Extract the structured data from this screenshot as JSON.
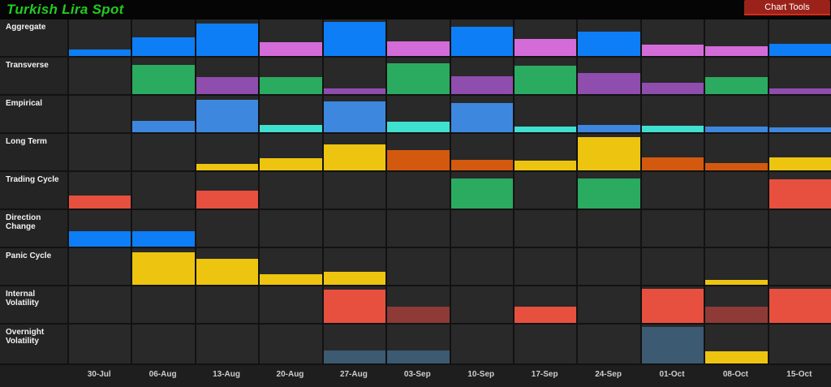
{
  "header": {
    "title": "Turkish Lira Spot",
    "chart_tools_label": "Chart Tools"
  },
  "ui_colors": {
    "title_green": "#21cb21",
    "button_bg": "#9b221a",
    "button_underline": "#d52c1a"
  },
  "palette": {
    "blue": "#0d7ef5",
    "lightblue": "#3e87de",
    "cyan": "#40e0d0",
    "pink": "#d36cd8",
    "green": "#2aab60",
    "purple": "#8f4dae",
    "yellow": "#edc511",
    "orange": "#d3590e",
    "red": "#e7503f",
    "maroon": "#8e3a37",
    "steel": "#3c5a72"
  },
  "chart_data": {
    "type": "bar",
    "title": "Turkish Lira Spot",
    "xlabel": "week",
    "ylabel": "relative signal strength (0-1 of row height)",
    "legend_position": "none",
    "grid": true,
    "layout_hint": "grid of weekly mini-bars, one row per indicator, bars bottom-aligned in each row cell; color encodes signal type",
    "categories": [
      "30-Jul",
      "06-Aug",
      "13-Aug",
      "20-Aug",
      "27-Aug",
      "03-Sep",
      "10-Sep",
      "17-Sep",
      "24-Sep",
      "01-Oct",
      "08-Oct",
      "15-Oct"
    ],
    "series": [
      {
        "name": "Aggregate",
        "values": [
          {
            "c": "blue",
            "v": 0.17
          },
          {
            "c": "blue",
            "v": 0.51
          },
          {
            "c": "blue",
            "v": 0.88
          },
          {
            "c": "pink",
            "v": 0.38
          },
          {
            "c": "blue",
            "v": 0.94
          },
          {
            "c": "pink",
            "v": 0.4
          },
          {
            "c": "blue",
            "v": 0.79
          },
          {
            "c": "pink",
            "v": 0.47
          },
          {
            "c": "blue",
            "v": 0.66
          },
          {
            "c": "pink",
            "v": 0.32
          },
          {
            "c": "pink",
            "v": 0.26
          },
          {
            "c": "blue",
            "v": 0.34
          }
        ]
      },
      {
        "name": "Transverse",
        "values": [
          null,
          {
            "c": "green",
            "v": 0.79
          },
          {
            "c": "purple",
            "v": 0.47
          },
          {
            "c": "green",
            "v": 0.47
          },
          {
            "c": "purple",
            "v": 0.15
          },
          {
            "c": "green",
            "v": 0.85
          },
          {
            "c": "purple",
            "v": 0.49
          },
          {
            "c": "green",
            "v": 0.77
          },
          {
            "c": "purple",
            "v": 0.57
          },
          {
            "c": "purple",
            "v": 0.32
          },
          {
            "c": "green",
            "v": 0.47
          },
          {
            "c": "purple",
            "v": 0.15
          }
        ]
      },
      {
        "name": "Empirical",
        "values": [
          null,
          {
            "c": "lightblue",
            "v": 0.32
          },
          {
            "c": "lightblue",
            "v": 0.89
          },
          {
            "c": "cyan",
            "v": 0.19
          },
          {
            "c": "lightblue",
            "v": 0.85
          },
          {
            "c": "cyan",
            "v": 0.3
          },
          {
            "c": "lightblue",
            "v": 0.79
          },
          {
            "c": "cyan",
            "v": 0.15
          },
          {
            "c": "lightblue",
            "v": 0.21
          },
          {
            "c": "cyan",
            "v": 0.17
          },
          {
            "c": "lightblue",
            "v": 0.15
          },
          {
            "c": "lightblue",
            "v": 0.13
          }
        ]
      },
      {
        "name": "Long Term",
        "values": [
          null,
          null,
          {
            "c": "yellow",
            "v": 0.17
          },
          {
            "c": "yellow",
            "v": 0.34
          },
          {
            "c": "yellow",
            "v": 0.72
          },
          {
            "c": "orange",
            "v": 0.55
          },
          {
            "c": "orange",
            "v": 0.3
          },
          {
            "c": "yellow",
            "v": 0.26
          },
          {
            "c": "yellow",
            "v": 0.91
          },
          {
            "c": "orange",
            "v": 0.36
          },
          {
            "c": "orange",
            "v": 0.2
          },
          {
            "c": "yellow",
            "v": 0.36
          }
        ]
      },
      {
        "name": "Trading Cycle",
        "values": [
          {
            "c": "red",
            "v": 0.36
          },
          null,
          {
            "c": "red",
            "v": 0.5
          },
          null,
          null,
          null,
          {
            "c": "green",
            "v": 0.82
          },
          null,
          {
            "c": "green",
            "v": 0.82
          },
          null,
          null,
          {
            "c": "red",
            "v": 0.8
          }
        ]
      },
      {
        "name": "Direction Change",
        "values": [
          {
            "c": "blue",
            "v": 0.43
          },
          {
            "c": "blue",
            "v": 0.43
          },
          null,
          null,
          null,
          null,
          null,
          null,
          null,
          null,
          null,
          null
        ]
      },
      {
        "name": "Panic Cycle",
        "values": [
          null,
          {
            "c": "yellow",
            "v": 0.88
          },
          {
            "c": "yellow",
            "v": 0.72
          },
          {
            "c": "yellow",
            "v": 0.3
          },
          {
            "c": "yellow",
            "v": 0.36
          },
          null,
          null,
          null,
          null,
          null,
          {
            "c": "yellow",
            "v": 0.13
          },
          null
        ]
      },
      {
        "name": "Internal Volatility",
        "values": [
          null,
          null,
          null,
          null,
          {
            "c": "red",
            "v": 0.91
          },
          {
            "c": "maroon",
            "v": 0.45
          },
          null,
          {
            "c": "red",
            "v": 0.45
          },
          null,
          {
            "c": "red",
            "v": 0.94
          },
          {
            "c": "maroon",
            "v": 0.45
          },
          {
            "c": "red",
            "v": 0.94
          }
        ]
      },
      {
        "name": "Overnight Volatility",
        "values": [
          null,
          null,
          null,
          null,
          {
            "c": "steel",
            "v": 0.34
          },
          {
            "c": "steel",
            "v": 0.34
          },
          null,
          null,
          null,
          {
            "c": "steel",
            "v": 0.94
          },
          {
            "c": "yellow",
            "v": 0.32
          },
          null
        ]
      }
    ]
  }
}
